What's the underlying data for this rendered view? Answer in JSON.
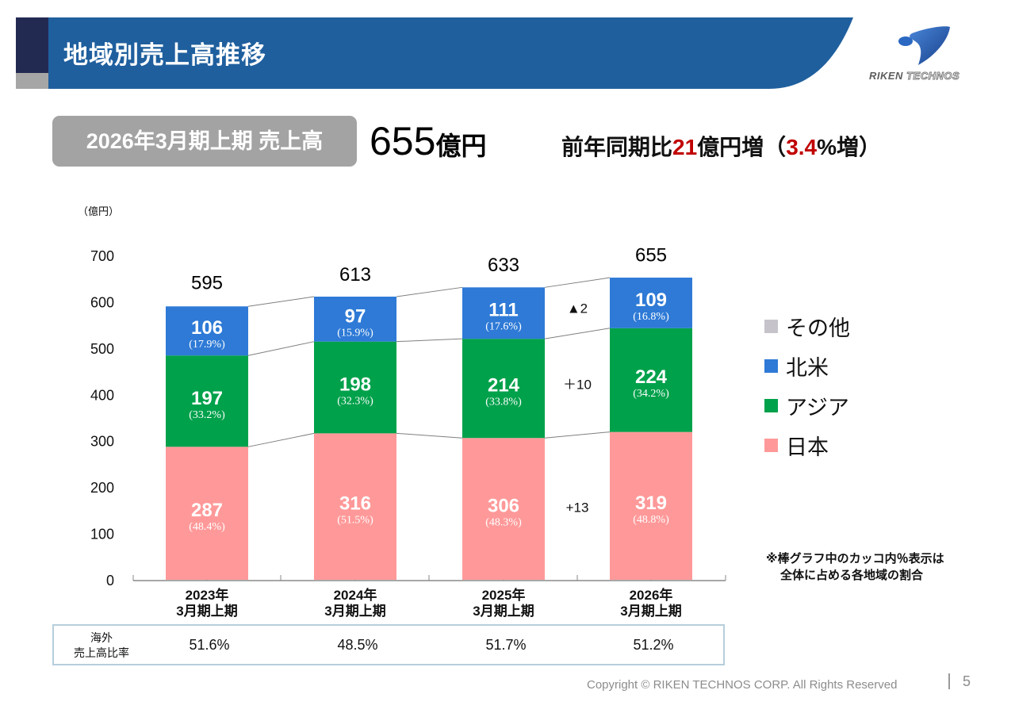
{
  "header": {
    "title": "地域別売上高推移",
    "logo_text_bold": "RIKEN",
    "logo_text_light": "TECHNOS"
  },
  "summary": {
    "badge_label": "2026年3月期上期 売上高",
    "value_number": "655",
    "value_unit": "億円",
    "yoy_prefix": "前年同期比",
    "yoy_amount": "21",
    "yoy_mid": "億円増（",
    "yoy_percent": "3.4",
    "yoy_suffix": "%増）"
  },
  "colors": {
    "header_blue": "#1f5f9e",
    "header_navy": "#232a52",
    "north_america": "#2e7ad6",
    "asia": "#00a14b",
    "japan": "#ff9999",
    "other": "#c6c3cb",
    "highlight_red": "#c00000"
  },
  "chart_data": {
    "type": "bar",
    "stacked": true,
    "title": "地域別売上高推移",
    "ylabel": "（億円）",
    "xlabel": "",
    "ylim": [
      0,
      700
    ],
    "yticks": [
      0,
      100,
      200,
      300,
      400,
      500,
      600,
      700
    ],
    "grid": false,
    "categories": [
      [
        "2023年",
        "3月期上期"
      ],
      [
        "2024年",
        "3月期上期"
      ],
      [
        "2025年",
        "3月期上期"
      ],
      [
        "2026年",
        "3月期上期"
      ]
    ],
    "totals": [
      595,
      613,
      633,
      655
    ],
    "series": [
      {
        "name": "日本",
        "key": "japan",
        "values": [
          287,
          316,
          306,
          319
        ],
        "shares": [
          "(48.4%)",
          "(51.5%)",
          "(48.3%)",
          "(48.8%)"
        ]
      },
      {
        "name": "アジア",
        "key": "asia",
        "values": [
          197,
          198,
          214,
          224
        ],
        "shares": [
          "(33.2%)",
          "(32.3%)",
          "(33.8%)",
          "(34.2%)"
        ]
      },
      {
        "name": "北米",
        "key": "north_america",
        "values": [
          106,
          97,
          111,
          109
        ],
        "shares": [
          "(17.9%)",
          "(15.9%)",
          "(17.6%)",
          "(16.8%)"
        ]
      }
    ],
    "change_annotations": [
      {
        "series": "北米",
        "label": "▲2"
      },
      {
        "series": "アジア",
        "label": "＋10"
      },
      {
        "series": "日本",
        "label": "+13"
      }
    ],
    "legend": {
      "position": "right",
      "items": [
        {
          "name": "その他",
          "key": "other"
        },
        {
          "name": "北米",
          "key": "north_america"
        },
        {
          "name": "アジア",
          "key": "asia"
        },
        {
          "name": "日本",
          "key": "japan"
        }
      ]
    }
  },
  "overseas_ratio": {
    "label_line1": "海外",
    "label_line2": "売上高比率",
    "values": [
      "51.6%",
      "48.5%",
      "51.7%",
      "51.2%"
    ]
  },
  "note": {
    "line1": "※棒グラフ中のカッコ内％表示は",
    "line2": "全体に占める各地域の割合"
  },
  "footer": {
    "copyright": "Copyright © RIKEN TECHNOS CORP. All Rights Reserved",
    "page_number": "5"
  }
}
